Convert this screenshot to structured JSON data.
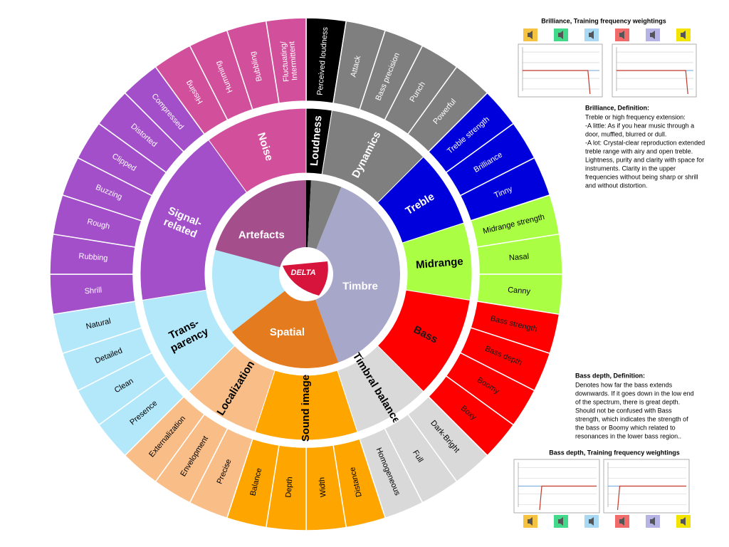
{
  "logo": "DELTA",
  "wheel": {
    "inner": [
      {
        "label": "Artefacts",
        "color": "#a44e8c"
      },
      {
        "label": "Timbre",
        "color": "#a7a7c9"
      },
      {
        "label": "Spatial",
        "color": "#e47b1f"
      }
    ],
    "groups": [
      {
        "label": [
          "Loudness"
        ],
        "color": "#000000",
        "text_color": "#ffffff",
        "items": [
          [
            "Perceived loudness"
          ]
        ]
      },
      {
        "label": [
          "Dynamics"
        ],
        "color": "#7f7f7f",
        "text_color": "#ffffff",
        "items": [
          [
            "Attack"
          ],
          [
            "Bass precision"
          ],
          [
            "Punch"
          ],
          [
            "Powerful"
          ]
        ]
      },
      {
        "label": [
          "Treble"
        ],
        "color": "#0000dd",
        "text_color": "#ffffff",
        "items": [
          [
            "Treble strength"
          ],
          [
            "Brilliance"
          ],
          [
            "Tinny"
          ]
        ]
      },
      {
        "label": [
          "Midrange"
        ],
        "color": "#aaff44",
        "text_color": "#000000",
        "items": [
          [
            "Midrange strength"
          ],
          [
            "Nasal"
          ],
          [
            "Canny"
          ]
        ]
      },
      {
        "label": [
          "Bass"
        ],
        "color": "#ff0000",
        "text_color": "#1a1a1a",
        "items": [
          [
            "Bass strength"
          ],
          [
            "Bass depth"
          ],
          [
            "Boomy"
          ],
          [
            "Boxy"
          ]
        ]
      },
      {
        "label": [
          "Timbral balance"
        ],
        "color": "#d9d9d9",
        "text_color": "#000000",
        "items": [
          [
            "Dark-Bright"
          ],
          [
            "Full"
          ],
          [
            "Homogeneous"
          ]
        ]
      },
      {
        "label": [
          "Sound image"
        ],
        "color": "#ffa500",
        "text_color": "#000000",
        "items": [
          [
            "Distance"
          ],
          [
            "Width"
          ],
          [
            "Depth"
          ],
          [
            "Balance"
          ]
        ]
      },
      {
        "label": [
          "Localization"
        ],
        "color": "#f9be88",
        "text_color": "#000000",
        "items": [
          [
            "Precise"
          ],
          [
            "Envelopment"
          ],
          [
            "Externalization"
          ]
        ]
      },
      {
        "label": [
          "Trans-",
          "parency"
        ],
        "color": "#b3e8fa",
        "text_color": "#000000",
        "items": [
          [
            "Presence"
          ],
          [
            "Clean"
          ],
          [
            "Detailed"
          ],
          [
            "Natural"
          ]
        ]
      },
      {
        "label": [
          "Signal-",
          "related"
        ],
        "color": "#a24fc9",
        "text_color": "#ffffff",
        "items": [
          [
            "Shrill"
          ],
          [
            "Rubbing"
          ],
          [
            "Rough"
          ],
          [
            "Buzzing"
          ],
          [
            "Clipped"
          ],
          [
            "Distorted"
          ],
          [
            "Compressed"
          ]
        ]
      },
      {
        "label": [
          "Noise"
        ],
        "color": "#d2509b",
        "text_color": "#ffffff",
        "items": [
          [
            "Hissing"
          ],
          [
            "Humming"
          ],
          [
            "Bubbling"
          ],
          [
            "Fluctuating/",
            "Intermittent"
          ]
        ]
      }
    ]
  },
  "panel": {
    "brilliance_chart_title": "Brilliance, Training frequency weightings",
    "brilliance_def_title": "Brilliance, Definition:",
    "brilliance_def": [
      "Treble or high frequency extension:",
      "-A little: As if you hear music through a",
      "door, muffled, blurred or dull.",
      "-A lot: Crystal-clear reproduction extended",
      "treble range with airy and open treble.",
      "Lightness, purity and clarity with space for",
      "instruments. Clarity in the upper",
      "frequencies without being sharp or shrill",
      "and without distortion."
    ],
    "bass_def_title": "Bass depth, Definition:",
    "bass_def": [
      "Denotes how far the bass extends",
      "downwards. If it goes down in the low end",
      "of the spectrum, there is great depth.",
      "Should not be confused with Bass",
      "strength, which indicates the strength of",
      "the bass or Boomy which related to",
      "resonances in the lower bass region.."
    ],
    "bass_chart_title": "Bass depth, Training frequency weightings"
  }
}
